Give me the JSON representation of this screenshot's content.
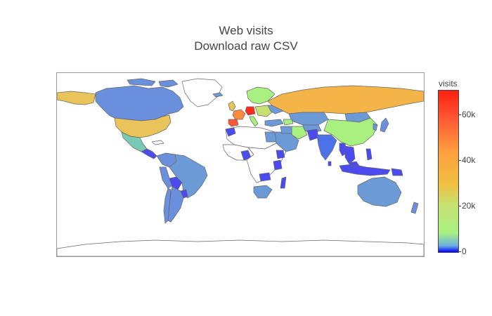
{
  "title": {
    "line1": "Web visits",
    "line2": "Download raw CSV"
  },
  "colorbar": {
    "title": "visits",
    "range": [
      0,
      70000
    ],
    "ticks": [
      {
        "value": 0,
        "label": "0"
      },
      {
        "value": 20000,
        "label": "20k"
      },
      {
        "value": 40000,
        "label": "40k"
      },
      {
        "value": 60000,
        "label": "60k"
      }
    ],
    "scale_colors": [
      "#0000ff",
      "#6cb0e0",
      "#a8f080",
      "#c8e070",
      "#f0c040",
      "#ffa040",
      "#ff5030",
      "#ff2010"
    ]
  },
  "map": {
    "projection": "equirectangular",
    "colors": {
      "low": "#4b4bef",
      "low_mid": "#6a8fdc",
      "mid_blue": "#6c9ad6",
      "teal": "#79c9b4",
      "green": "#a8f080",
      "yellow": "#e8c45a",
      "orange": "#f4b448",
      "red": "#ff5533"
    }
  }
}
